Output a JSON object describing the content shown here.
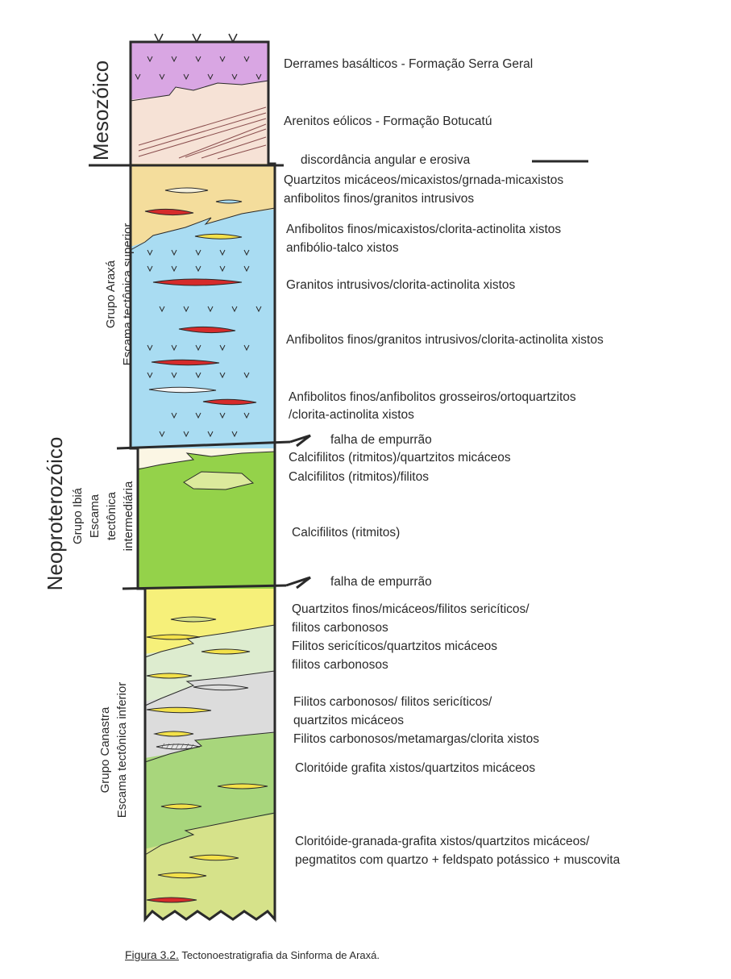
{
  "eras": {
    "mesozoic": "Mesozóico",
    "neoproterozoic": "Neoproterozóico"
  },
  "groups": {
    "araxa": {
      "name": "Grupo Araxá",
      "scale": "Escama tectônica superior"
    },
    "ibia": {
      "name": "Grupo Ibiá",
      "scale_1": "Escama",
      "scale_2": "tectônica",
      "scale_3": "intermediária"
    },
    "canastra": {
      "name": "Grupo Canastra",
      "scale": "Escama tectônica inferior"
    }
  },
  "descriptions": [
    "Derrames basálticos - Formação Serra Geral",
    "Arenitos eólicos - Formação Botucatú",
    "discordância angular e erosiva",
    "Quartzitos micáceos/micaxistos/grnada-micaxistos",
    "anfibolitos finos/granitos intrusivos",
    "Anfibolitos finos/micaxistos/clorita-actinolita xistos",
    "anfibólio-talco xistos",
    "Granitos intrusivos/clorita-actinolita xistos",
    "Anfibolitos finos/granitos intrusivos/clorita-actinolita xistos",
    "Anfibolitos finos/anfibolitos grosseiros/ortoquartzitos",
    "/clorita-actinolita xistos",
    "falha de empurrão",
    "Calcifilitos (ritmitos)/quartzitos micáceos",
    "Calcifilitos (ritmitos)/filitos",
    "Calcifilitos (ritmitos)",
    "falha de empurrão",
    "Quartzitos finos/micáceos/filitos sericíticos/",
    "filitos carbonosos",
    "Filitos sericíticos/quartzitos micáceos",
    "filitos carbonosos",
    "Filitos carbonosos/ filitos sericíticos/",
    "quartzitos micáceos",
    "Filitos carbonosos/metamargas/clorita xistos",
    "Cloritóide grafita xistos/quartzitos micáceos",
    "Cloritóide-granada-grafita xistos/quartzitos micáceos/",
    "pegmatitos com quartzo + feldspato potássico + muscovita"
  ],
  "caption": {
    "figure": "Figura 3.2.",
    "text": " Tectonoestratigrafia da Sinforma de Araxá."
  },
  "colors": {
    "basalt": "#d9a6e3",
    "sandstone": "#f6e2d6",
    "araxa_upper": "#f4dd9c",
    "araxa_blue": "#a9dcf2",
    "ibia_green": "#94d24a",
    "canastra_yellow": "#f6f07a",
    "canastra_pale": "#ddeccf",
    "canastra_grey": "#dcdcdc",
    "canastra_green": "#a8d67c",
    "canastra_olive": "#d6e28a",
    "lens_red": "#d62b2b",
    "lens_yellow": "#f3e14a",
    "ink": "#2a2a2a"
  }
}
